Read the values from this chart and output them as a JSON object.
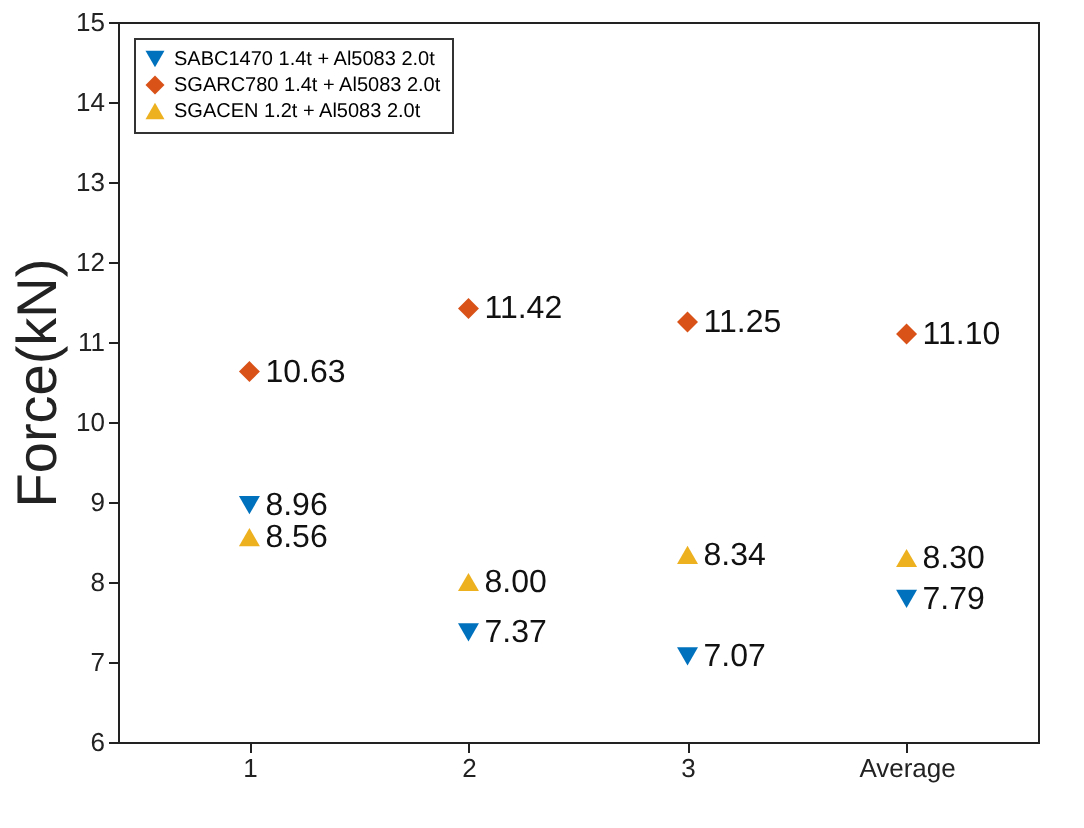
{
  "chart_data": {
    "type": "scatter",
    "ylabel": "Force(kN)",
    "categories": [
      "1",
      "2",
      "3",
      "Average"
    ],
    "ylim": [
      6,
      15
    ],
    "yticks": [
      6,
      7,
      8,
      9,
      10,
      11,
      12,
      13,
      14,
      15
    ],
    "grid": false,
    "legend": "top left",
    "series": [
      {
        "name": "SABC1470 1.4t + Al5083 2.0t",
        "color": "#0072bd",
        "marker": "triangle-down",
        "values": [
          8.96,
          7.37,
          7.07,
          7.79
        ],
        "value_labels": [
          "8.96",
          "7.37",
          "7.07",
          "7.79"
        ]
      },
      {
        "name": "SGARC780 1.4t + Al5083 2.0t",
        "color": "#d95319",
        "marker": "diamond",
        "values": [
          10.63,
          11.42,
          11.25,
          11.1
        ],
        "value_labels": [
          "10.63",
          "11.42",
          "11.25",
          "11.10"
        ]
      },
      {
        "name": "SGACEN 1.2t + Al5083 2.0t",
        "color": "#edb120",
        "marker": "triangle",
        "values": [
          8.56,
          8.0,
          8.34,
          8.3
        ],
        "value_labels": [
          "8.56",
          "8.00",
          "8.34",
          "8.30"
        ]
      }
    ]
  }
}
